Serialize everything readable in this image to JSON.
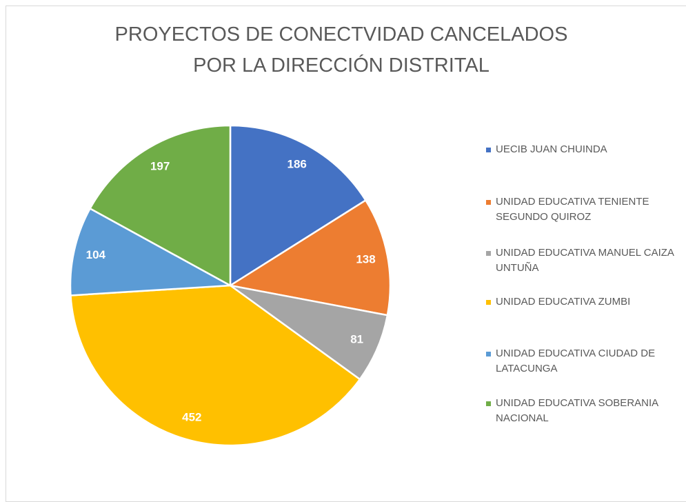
{
  "chart_data": {
    "type": "pie",
    "title": "PROYECTOS DE CONECTVIDAD CANCELADOS POR LA DIRECCIÓN DISTRITAL",
    "categories": [
      "UECIB JUAN CHUINDA",
      "UNIDAD EDUCATIVA TENIENTE SEGUNDO QUIROZ",
      "UNIDAD EDUCATIVA MANUEL CAIZA UNTUÑA",
      "UNIDAD EDUCATIVA ZUMBI",
      "UNIDAD EDUCATIVA CIUDAD DE LATACUNGA",
      "UNIDAD EDUCATIVA SOBERANIA NACIONAL"
    ],
    "values": [
      186,
      138,
      81,
      452,
      104,
      197
    ],
    "colors": [
      "#4472c4",
      "#ed7d31",
      "#a5a5a5",
      "#ffc000",
      "#5b9bd5",
      "#70ad47"
    ],
    "legend": "right"
  }
}
